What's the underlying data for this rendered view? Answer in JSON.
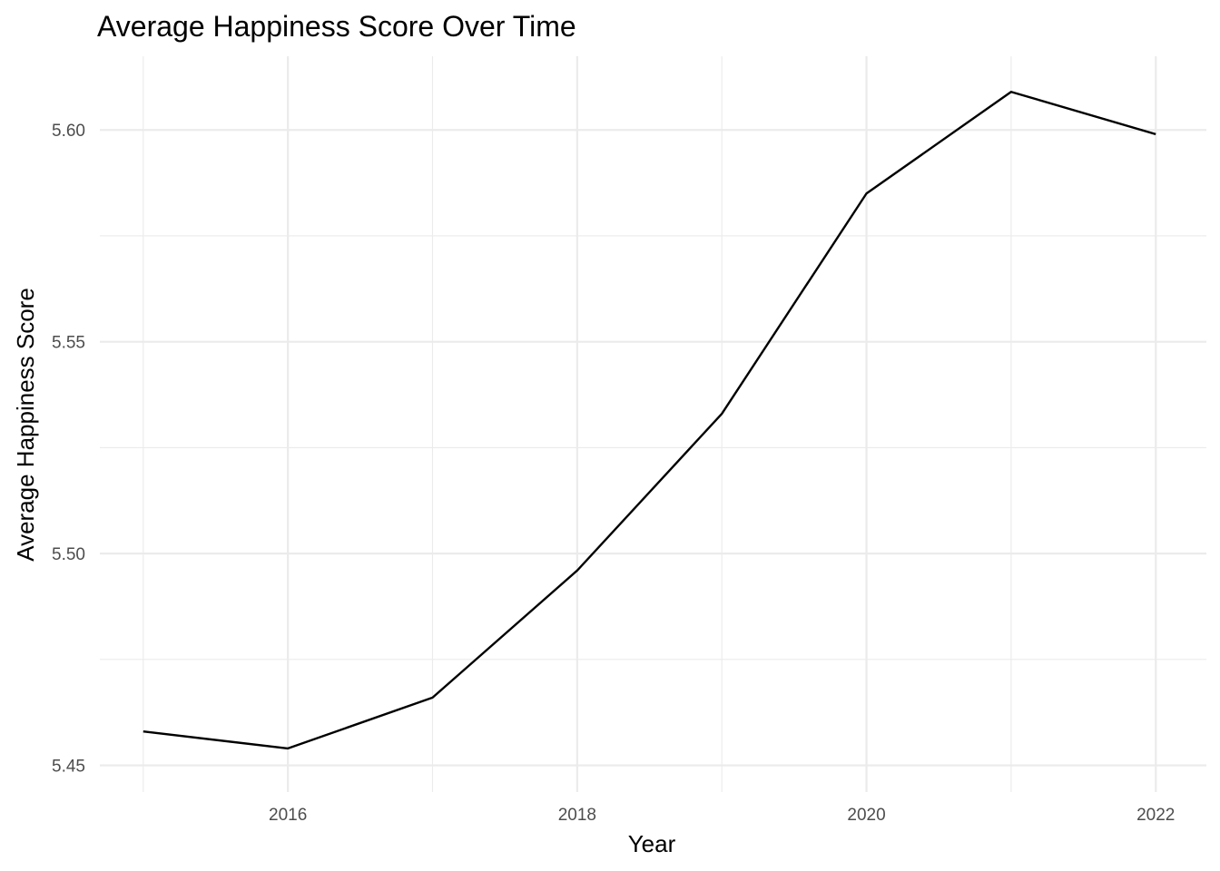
{
  "chart_data": {
    "type": "line",
    "title": "Average Happiness Score Over Time",
    "xlabel": "Year",
    "ylabel": "Average Happiness Score",
    "x": [
      2015,
      2016,
      2017,
      2018,
      2019,
      2020,
      2021,
      2022
    ],
    "series": [
      {
        "values": [
          5.458,
          5.454,
          5.466,
          5.496,
          5.533,
          5.585,
          5.609,
          5.599
        ],
        "color": "#000000"
      }
    ],
    "xlim": [
      2014.7,
      2022.35
    ],
    "ylim": [
      5.4437,
      5.6174
    ],
    "x_major_ticks": [
      2016,
      2018,
      2020,
      2022
    ],
    "x_minor_ticks": [
      2015,
      2017,
      2019,
      2021
    ],
    "y_major_ticks": [
      5.45,
      5.5,
      5.55,
      5.6
    ],
    "y_minor_ticks": [
      5.475,
      5.525,
      5.575
    ],
    "x_tick_labels": [
      "2016",
      "2018",
      "2020",
      "2022"
    ],
    "y_tick_labels": [
      "5.45",
      "5.50",
      "5.55",
      "5.60"
    ],
    "grid": true,
    "legend": "none"
  }
}
